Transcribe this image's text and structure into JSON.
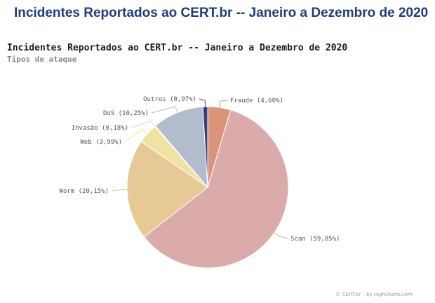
{
  "header": {
    "title": "Incidentes Reportados ao CERT.br -- Janeiro a Dezembro de 2020"
  },
  "chart_data": {
    "type": "pie",
    "title": "Incidentes Reportados ao CERT.br -- Janeiro a Dezembro de 2020",
    "subtitle": "Tipos de ataque",
    "slices": [
      {
        "name": "Fraude",
        "value": 4.6,
        "label": "Fraude (4,60%)",
        "color": "#d9957a"
      },
      {
        "name": "Scan",
        "value": 59.85,
        "label": "Scan (59,85%)",
        "color": "#dbaaaa"
      },
      {
        "name": "Worm",
        "value": 20.15,
        "label": "Worm (20,15%)",
        "color": "#e6c994"
      },
      {
        "name": "Web",
        "value": 3.99,
        "label": "Web (3,99%)",
        "color": "#efe3a4"
      },
      {
        "name": "Invasão",
        "value": 0.18,
        "label": "Invasão (0,18%)",
        "color": "#e8ddb0"
      },
      {
        "name": "DoS",
        "value": 10.25,
        "label": "DoS (10,25%)",
        "color": "#b3bccc"
      },
      {
        "name": "Outros",
        "value": 0.97,
        "label": "Outros (0,97%)",
        "color": "#3a3d80"
      }
    ]
  },
  "credits": "© CERT.br – by Highcharts.com"
}
